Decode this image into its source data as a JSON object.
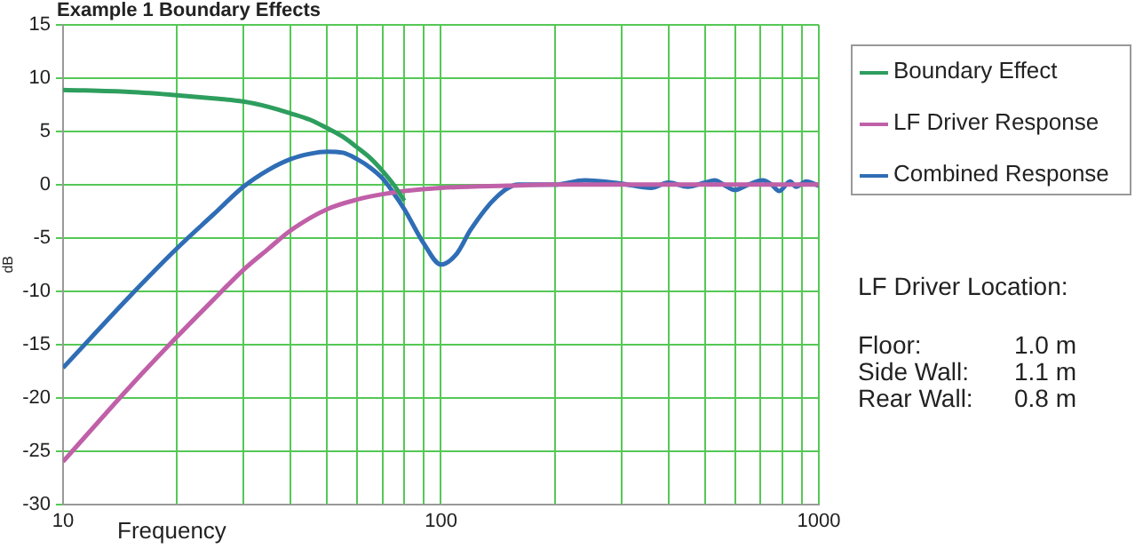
{
  "chart_data": {
    "type": "line",
    "title": "Example 1 Boundary Effects",
    "xlabel": "Frequency",
    "ylabel": "dB",
    "log": "x",
    "xlim": [
      10,
      1000
    ],
    "xticks": [
      10,
      {
        "value": 20,
        "label": null
      },
      {
        "value": 30,
        "label": null
      },
      {
        "value": 40,
        "label": null
      },
      {
        "value": 50,
        "label": null
      },
      {
        "value": 60,
        "label": null
      },
      {
        "value": 70,
        "label": null
      },
      {
        "value": 80,
        "label": null
      },
      {
        "value": 90,
        "label": null
      },
      100,
      {
        "value": 200,
        "label": null
      },
      {
        "value": 300,
        "label": null
      },
      {
        "value": 400,
        "label": null
      },
      {
        "value": 500,
        "label": null
      },
      {
        "value": 600,
        "label": null
      },
      {
        "value": 700,
        "label": null
      },
      {
        "value": 800,
        "label": null
      },
      {
        "value": 900,
        "label": null
      },
      1000
    ],
    "ylim": [
      -30,
      15
    ],
    "yticks": [
      -30,
      -25,
      -20,
      -15,
      -10,
      -5,
      0,
      5,
      10,
      15
    ],
    "grid": true,
    "legend": "right",
    "marker": "none",
    "line_style": "solid",
    "series": [
      {
        "name": "Boundary Effect",
        "color": "#2e9e5e",
        "x": [
          10,
          15,
          20,
          25,
          30,
          35,
          40,
          45,
          50,
          55,
          60,
          65,
          70,
          75,
          80
        ],
        "values": [
          8.9,
          8.7,
          8.4,
          8.1,
          7.8,
          7.3,
          6.7,
          6.1,
          5.3,
          4.5,
          3.5,
          2.5,
          1.3,
          0,
          -1.5
        ]
      },
      {
        "name": "LF Driver Response",
        "color": "#c060a8",
        "x": [
          10,
          15,
          20,
          25,
          30,
          35,
          40,
          50,
          60,
          70,
          80,
          100,
          150,
          200,
          300,
          500,
          700,
          1000
        ],
        "values": [
          -26,
          -19,
          -14.3,
          -10.8,
          -8,
          -6,
          -4.3,
          -2.3,
          -1.4,
          -0.9,
          -0.6,
          -0.3,
          -0.1,
          0,
          0,
          0,
          0,
          0
        ]
      },
      {
        "name": "Combined Response",
        "color": "#2f6db5",
        "x": [
          10,
          15,
          20,
          25,
          30,
          35,
          40,
          45,
          50,
          55,
          60,
          65,
          70,
          75,
          80,
          90,
          100,
          110,
          120,
          140,
          160,
          200,
          240,
          300,
          360,
          400,
          450,
          500,
          530,
          560,
          600,
          650,
          710,
          750,
          785,
          840,
          870,
          925,
          1000
        ],
        "values": [
          -17.2,
          -10.5,
          -6,
          -2.8,
          -0.2,
          1.4,
          2.4,
          2.9,
          3.1,
          3.0,
          2.4,
          1.6,
          0.6,
          -0.8,
          -2.3,
          -5.5,
          -7.5,
          -6.5,
          -4.2,
          -1.2,
          0,
          0,
          0.4,
          0.1,
          -0.3,
          0.2,
          -0.2,
          0.2,
          0.4,
          0,
          -0.5,
          0,
          0.4,
          0,
          -0.6,
          0.3,
          -0.2,
          0.3,
          -0.1
        ]
      }
    ],
    "annotations": [
      "LF Driver Location:",
      "Floor: 1.0 m",
      "Side Wall: 1.1 m",
      "Rear Wall: 0.8 m"
    ]
  }
}
